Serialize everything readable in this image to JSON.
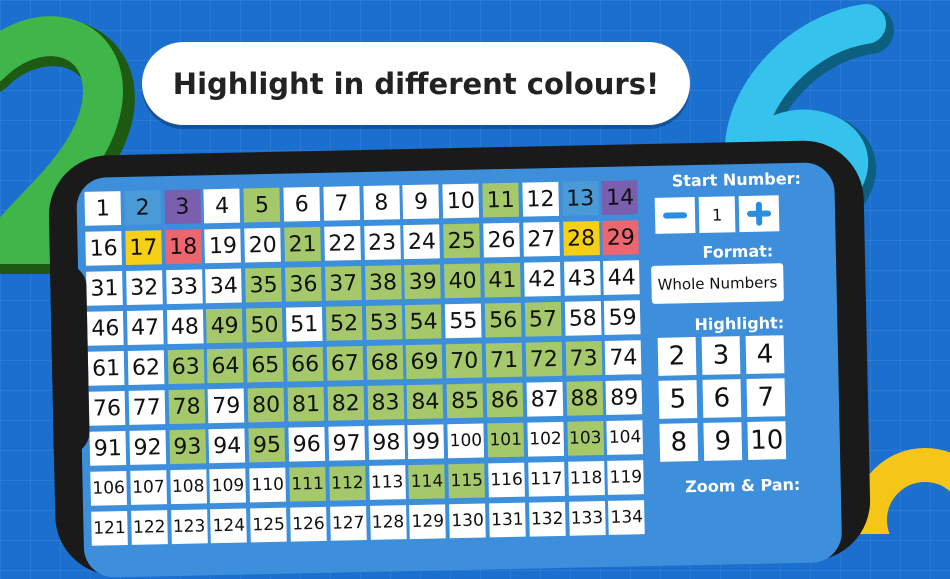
{
  "banner": {
    "text": "Highlight in different colours!"
  },
  "grid": {
    "rows": [
      [
        1,
        2,
        3,
        4,
        5,
        6,
        7,
        8,
        9,
        10,
        11,
        12,
        13,
        14
      ],
      [
        16,
        17,
        18,
        19,
        20,
        21,
        22,
        23,
        24,
        25,
        26,
        27,
        28,
        29
      ],
      [
        31,
        32,
        33,
        34,
        35,
        36,
        37,
        38,
        39,
        40,
        41,
        42,
        43,
        44
      ],
      [
        46,
        47,
        48,
        49,
        50,
        51,
        52,
        53,
        54,
        55,
        56,
        57,
        58,
        59
      ],
      [
        61,
        62,
        63,
        64,
        65,
        66,
        67,
        68,
        69,
        70,
        71,
        72,
        73,
        74
      ],
      [
        76,
        77,
        78,
        79,
        80,
        81,
        82,
        83,
        84,
        85,
        86,
        87,
        88,
        89
      ],
      [
        91,
        92,
        93,
        94,
        95,
        96,
        97,
        98,
        99,
        100,
        101,
        102,
        103,
        104
      ],
      [
        106,
        107,
        108,
        109,
        110,
        111,
        112,
        113,
        114,
        115,
        116,
        117,
        118,
        119
      ],
      [
        121,
        122,
        123,
        124,
        125,
        126,
        127,
        128,
        129,
        130,
        131,
        132,
        133,
        134
      ]
    ],
    "highlights": [
      {
        "color": "#a5c86a",
        "numbers": [
          5,
          11,
          21,
          25,
          35,
          36,
          37,
          38,
          39,
          40,
          41,
          49,
          50,
          52,
          53,
          54,
          56,
          57,
          63,
          64,
          65,
          66,
          67,
          68,
          69,
          70,
          71,
          72,
          73,
          78,
          80,
          81,
          82,
          83,
          84,
          85,
          86,
          88,
          93,
          95,
          101,
          103,
          111,
          112,
          114,
          115
        ]
      },
      {
        "color": "#4a9ad8",
        "numbers": [
          2,
          13
        ]
      },
      {
        "color": "#7a5fae",
        "numbers": [
          3,
          14
        ]
      },
      {
        "color": "#f5d014",
        "numbers": [
          17,
          28
        ]
      },
      {
        "color": "#ec6670",
        "numbers": [
          18,
          29
        ]
      }
    ]
  },
  "panel": {
    "start_label": "Start Number:",
    "start_value": 1,
    "format_label": "Format:",
    "format_value": "Whole Numbers",
    "highlight_label": "Highlight:",
    "highlight_options": [
      2,
      3,
      4,
      5,
      6,
      7,
      8,
      9,
      10
    ],
    "zoom_label": "Zoom & Pan:"
  }
}
